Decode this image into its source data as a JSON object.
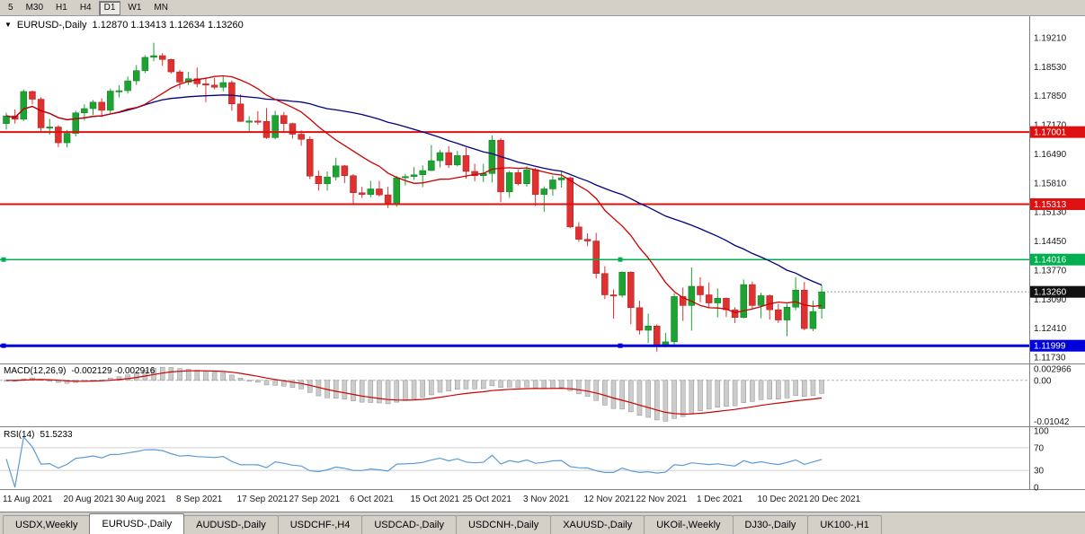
{
  "toolbar": {
    "timeframes": [
      "5",
      "M30",
      "H1",
      "H4",
      "D1",
      "W1",
      "MN"
    ],
    "active": "D1"
  },
  "chart": {
    "dropdown_icon": "▼",
    "title_symbol": "EURUSD-,Daily",
    "title_ohlc": "1.12870 1.13413 1.12634 1.13260"
  },
  "price_axis": {
    "ticks": [
      "1.19210",
      "1.18530",
      "1.17850",
      "1.17170",
      "1.16490",
      "1.15810",
      "1.15130",
      "1.14450",
      "1.13770",
      "1.13090",
      "1.12410",
      "1.11730"
    ],
    "chips": [
      {
        "text": "1.17001",
        "value": 1.17001,
        "bg": "#dd1111",
        "fg": "#ffffff"
      },
      {
        "text": "1.15313",
        "value": 1.15313,
        "bg": "#dd1111",
        "fg": "#ffffff"
      },
      {
        "text": "1.14016",
        "value": 1.14016,
        "bg": "#00b050",
        "fg": "#ffffff"
      },
      {
        "text": "1.13260",
        "value": 1.1326,
        "bg": "#111111",
        "fg": "#ffffff"
      },
      {
        "text": "1.11999",
        "value": 1.11999,
        "bg": "#0000dd",
        "fg": "#ffffff"
      }
    ]
  },
  "indicators": {
    "macd": {
      "label": "MACD(12,26,9)",
      "values_text": "-0.002129 -0.002916",
      "fast": 12,
      "slow": 26,
      "signal": 9,
      "axis": [
        {
          "text": "0.002966",
          "value": 0.002966
        },
        {
          "text": "0.00",
          "value": 0
        },
        {
          "text": "-0.01042",
          "value": -0.01042
        }
      ],
      "bar_color": "#cccccc",
      "signal_color": "#cc0000"
    },
    "rsi": {
      "label": "RSI(14)",
      "value_text": "51.5233",
      "period": 14,
      "axis": [
        {
          "text": "100",
          "value": 100
        },
        {
          "text": "70",
          "value": 70
        },
        {
          "text": "30",
          "value": 30
        },
        {
          "text": "0",
          "value": 0
        }
      ],
      "levels": [
        70,
        30
      ],
      "line_color": "#5b9bd5"
    }
  },
  "x_axis": {
    "labels": [
      {
        "text": "11 Aug 2021",
        "index": 0
      },
      {
        "text": "20 Aug 2021",
        "index": 7
      },
      {
        "text": "30 Aug 2021",
        "index": 13
      },
      {
        "text": "8 Sep 2021",
        "index": 20
      },
      {
        "text": "17 Sep 2021",
        "index": 27
      },
      {
        "text": "27 Sep 2021",
        "index": 33
      },
      {
        "text": "6 Oct 2021",
        "index": 40
      },
      {
        "text": "15 Oct 2021",
        "index": 47
      },
      {
        "text": "25 Oct 2021",
        "index": 53
      },
      {
        "text": "3 Nov 2021",
        "index": 60
      },
      {
        "text": "12 Nov 2021",
        "index": 67
      },
      {
        "text": "22 Nov 2021",
        "index": 73
      },
      {
        "text": "1 Dec 2021",
        "index": 80
      },
      {
        "text": "10 Dec 2021",
        "index": 87
      },
      {
        "text": "20 Dec 2021",
        "index": 93
      }
    ]
  },
  "tabs": [
    {
      "label": "USDX,Weekly",
      "active": false
    },
    {
      "label": "EURUSD-,Daily",
      "active": true
    },
    {
      "label": "AUDUSD-,Daily",
      "active": false
    },
    {
      "label": "USDCHF-,H4",
      "active": false
    },
    {
      "label": "USDCAD-,Daily",
      "active": false
    },
    {
      "label": "USDCNH-,Daily",
      "active": false
    },
    {
      "label": "XAUUSD-,Daily",
      "active": false
    },
    {
      "label": "UKOil-,Weekly",
      "active": false
    },
    {
      "label": "DJ30-,Daily",
      "active": false
    },
    {
      "label": "UK100-,H1",
      "active": false
    }
  ],
  "chart_data": {
    "type": "candlestick",
    "symbol": "EURUSD-",
    "timeframe": "Daily",
    "current_ohlc": {
      "open": 1.1287,
      "high": 1.13413,
      "low": 1.12634,
      "close": 1.1326
    },
    "visible_price_range": [
      1.1165,
      1.1967
    ],
    "up_color": "#1ca332",
    "down_color": "#e03131",
    "overlays": [
      {
        "name": "ma-fast",
        "type": "sma",
        "period": 13,
        "color": "#cc0000"
      },
      {
        "name": "ma-slow",
        "type": "sma",
        "period": 34,
        "color": "#000080"
      }
    ],
    "hlines": [
      {
        "value": 1.17001,
        "color": "#dd1111",
        "width": 2,
        "handles": false
      },
      {
        "value": 1.15313,
        "color": "#dd1111",
        "width": 2,
        "handles": false
      },
      {
        "value": 1.14016,
        "color": "#00b050",
        "width": 1.5,
        "handles": true
      },
      {
        "value": 1.11999,
        "color": "#0000dd",
        "width": 3,
        "handles": true
      }
    ],
    "candles": [
      [
        1.172,
        1.1745,
        1.1706,
        1.1738
      ],
      [
        1.1738,
        1.1753,
        1.172,
        1.173
      ],
      [
        1.173,
        1.18,
        1.1726,
        1.1795
      ],
      [
        1.1795,
        1.1797,
        1.1765,
        1.1777
      ],
      [
        1.1777,
        1.1782,
        1.1702,
        1.171
      ],
      [
        1.171,
        1.1731,
        1.1694,
        1.1712
      ],
      [
        1.1712,
        1.1716,
        1.1665,
        1.1675
      ],
      [
        1.1675,
        1.1705,
        1.1664,
        1.1697
      ],
      [
        1.1697,
        1.175,
        1.169,
        1.1745
      ],
      [
        1.1745,
        1.1765,
        1.1727,
        1.1755
      ],
      [
        1.1755,
        1.1775,
        1.174,
        1.177
      ],
      [
        1.177,
        1.1779,
        1.1735,
        1.1751
      ],
      [
        1.1751,
        1.1802,
        1.1744,
        1.1796
      ],
      [
        1.1796,
        1.181,
        1.1781,
        1.1797
      ],
      [
        1.1797,
        1.183,
        1.179,
        1.182
      ],
      [
        1.182,
        1.1857,
        1.181,
        1.1844
      ],
      [
        1.1844,
        1.188,
        1.1838,
        1.1875
      ],
      [
        1.1875,
        1.1909,
        1.1866,
        1.1879
      ],
      [
        1.1879,
        1.1885,
        1.1855,
        1.187
      ],
      [
        1.187,
        1.1872,
        1.1837,
        1.1841
      ],
      [
        1.1841,
        1.1846,
        1.1802,
        1.1817
      ],
      [
        1.1817,
        1.1841,
        1.181,
        1.1825
      ],
      [
        1.1825,
        1.1851,
        1.1805,
        1.1813
      ],
      [
        1.1813,
        1.1828,
        1.177,
        1.181
      ],
      [
        1.181,
        1.1827,
        1.18,
        1.1805
      ],
      [
        1.1805,
        1.1832,
        1.1795,
        1.1816
      ],
      [
        1.1816,
        1.1821,
        1.175,
        1.1766
      ],
      [
        1.1766,
        1.1788,
        1.1724,
        1.1725
      ],
      [
        1.1725,
        1.1737,
        1.17,
        1.1726
      ],
      [
        1.1726,
        1.1749,
        1.1717,
        1.1725
      ],
      [
        1.1725,
        1.1756,
        1.1684,
        1.1687
      ],
      [
        1.1687,
        1.175,
        1.1683,
        1.1739
      ],
      [
        1.1739,
        1.1747,
        1.1701,
        1.172
      ],
      [
        1.172,
        1.1722,
        1.1685,
        1.1695
      ],
      [
        1.1695,
        1.1704,
        1.1668,
        1.1683
      ],
      [
        1.1683,
        1.169,
        1.159,
        1.1597
      ],
      [
        1.1597,
        1.161,
        1.1563,
        1.1579
      ],
      [
        1.1579,
        1.1608,
        1.1563,
        1.1595
      ],
      [
        1.1595,
        1.164,
        1.1587,
        1.1621
      ],
      [
        1.1621,
        1.1623,
        1.1581,
        1.1598
      ],
      [
        1.1598,
        1.1602,
        1.1529,
        1.1558
      ],
      [
        1.1558,
        1.1572,
        1.1546,
        1.1554
      ],
      [
        1.1554,
        1.1586,
        1.1547,
        1.1567
      ],
      [
        1.1567,
        1.1586,
        1.1549,
        1.1553
      ],
      [
        1.1553,
        1.1572,
        1.1522,
        1.153
      ],
      [
        1.153,
        1.1597,
        1.1525,
        1.1593
      ],
      [
        1.1593,
        1.1602,
        1.1575,
        1.1596
      ],
      [
        1.1596,
        1.1618,
        1.1588,
        1.16
      ],
      [
        1.16,
        1.1622,
        1.1571,
        1.161
      ],
      [
        1.161,
        1.167,
        1.1609,
        1.1633
      ],
      [
        1.1633,
        1.1658,
        1.1617,
        1.1652
      ],
      [
        1.1652,
        1.1667,
        1.1616,
        1.1623
      ],
      [
        1.1623,
        1.1656,
        1.162,
        1.1645
      ],
      [
        1.1645,
        1.1664,
        1.1591,
        1.1608
      ],
      [
        1.1608,
        1.1626,
        1.1585,
        1.1598
      ],
      [
        1.1598,
        1.1626,
        1.1583,
        1.1603
      ],
      [
        1.1603,
        1.1692,
        1.1582,
        1.1681
      ],
      [
        1.1681,
        1.1686,
        1.1536,
        1.156
      ],
      [
        1.156,
        1.1609,
        1.1546,
        1.1605
      ],
      [
        1.1605,
        1.1612,
        1.1575,
        1.1579
      ],
      [
        1.1579,
        1.162,
        1.1572,
        1.1612
      ],
      [
        1.1612,
        1.1616,
        1.1527,
        1.1554
      ],
      [
        1.1554,
        1.1573,
        1.1513,
        1.1567
      ],
      [
        1.1567,
        1.1598,
        1.1551,
        1.1588
      ],
      [
        1.1588,
        1.1609,
        1.157,
        1.1593
      ],
      [
        1.1593,
        1.1596,
        1.1475,
        1.1478
      ],
      [
        1.1478,
        1.1489,
        1.1443,
        1.1449
      ],
      [
        1.1449,
        1.1463,
        1.1433,
        1.1445
      ],
      [
        1.1445,
        1.1464,
        1.1357,
        1.1369
      ],
      [
        1.1369,
        1.1386,
        1.1309,
        1.1319
      ],
      [
        1.1319,
        1.1332,
        1.1263,
        1.1318
      ],
      [
        1.1318,
        1.1374,
        1.1313,
        1.1372
      ],
      [
        1.1372,
        1.1374,
        1.125,
        1.1289
      ],
      [
        1.1289,
        1.1305,
        1.1226,
        1.1236
      ],
      [
        1.1236,
        1.1275,
        1.1206,
        1.1246
      ],
      [
        1.1246,
        1.125,
        1.1186,
        1.1199
      ],
      [
        1.1199,
        1.123,
        1.1196,
        1.1209
      ],
      [
        1.1209,
        1.1323,
        1.1203,
        1.1315
      ],
      [
        1.1315,
        1.1336,
        1.1258,
        1.1294
      ],
      [
        1.1294,
        1.1383,
        1.1235,
        1.1339
      ],
      [
        1.1339,
        1.136,
        1.1302,
        1.1319
      ],
      [
        1.1319,
        1.1348,
        1.1288,
        1.13
      ],
      [
        1.13,
        1.1334,
        1.1266,
        1.1311
      ],
      [
        1.1311,
        1.1313,
        1.1267,
        1.1284
      ],
      [
        1.1284,
        1.129,
        1.1253,
        1.1266
      ],
      [
        1.1266,
        1.1355,
        1.1264,
        1.1343
      ],
      [
        1.1343,
        1.135,
        1.1287,
        1.1294
      ],
      [
        1.1294,
        1.1324,
        1.1264,
        1.1317
      ],
      [
        1.1317,
        1.132,
        1.1261,
        1.1284
      ],
      [
        1.1284,
        1.1298,
        1.1253,
        1.126
      ],
      [
        1.126,
        1.1298,
        1.1222,
        1.129
      ],
      [
        1.129,
        1.136,
        1.1283,
        1.133
      ],
      [
        1.133,
        1.1349,
        1.1236,
        1.124
      ],
      [
        1.124,
        1.1305,
        1.1234,
        1.128
      ],
      [
        1.1287,
        1.13413,
        1.12634,
        1.1326
      ]
    ]
  }
}
